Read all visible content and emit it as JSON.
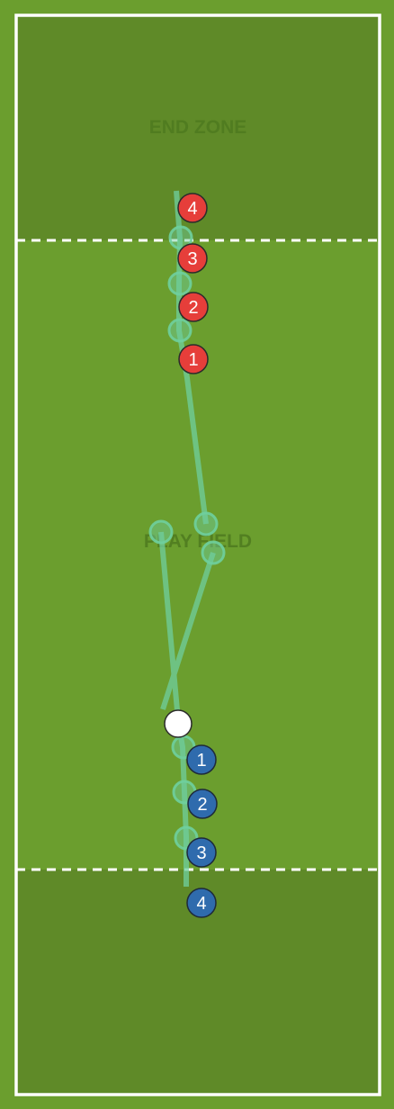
{
  "colors": {
    "outer": "#6b9e2e",
    "endzone": "#5f8a28",
    "playfield": "#6b9e2e",
    "lines": "#ffffff",
    "path": "#6fcf9f",
    "red_team": "#e63e3a",
    "blue_team": "#2f6bad",
    "disc": "#ffffff"
  },
  "labels": {
    "end_zone": "END ZONE",
    "play_field": "PLAY FIELD"
  },
  "red_players": [
    {
      "number": "4"
    },
    {
      "number": "3"
    },
    {
      "number": "2"
    },
    {
      "number": "1"
    }
  ],
  "blue_players": [
    {
      "number": "1"
    },
    {
      "number": "2"
    },
    {
      "number": "3"
    },
    {
      "number": "4"
    }
  ],
  "disc": {
    "icon": "disc-icon"
  }
}
